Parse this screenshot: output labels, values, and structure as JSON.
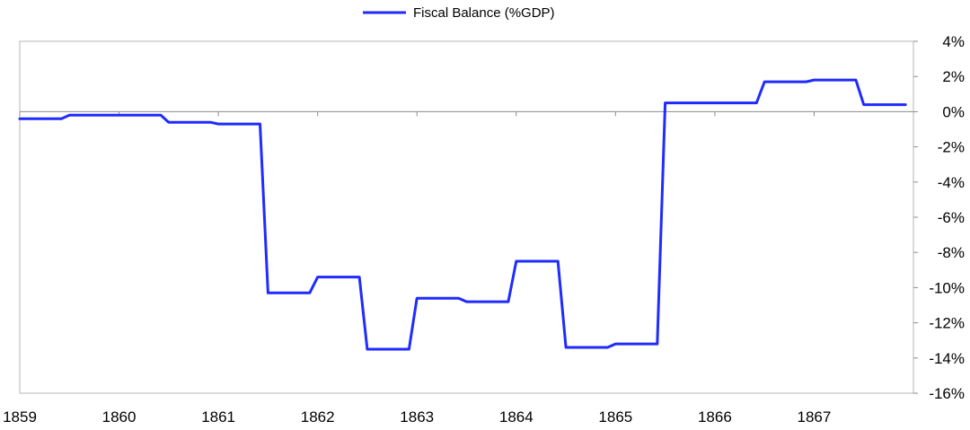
{
  "chart_data": {
    "type": "line",
    "title": "",
    "xlabel": "",
    "ylabel": "",
    "x_ticks": [
      "1859",
      "1860",
      "1861",
      "1862",
      "1863",
      "1864",
      "1865",
      "1866",
      "1867"
    ],
    "y_ticks": [
      {
        "value": 4,
        "label": "4%"
      },
      {
        "value": 2,
        "label": "2%"
      },
      {
        "value": 0,
        "label": "0%"
      },
      {
        "value": -2,
        "label": "-2%"
      },
      {
        "value": -4,
        "label": "-4%"
      },
      {
        "value": -6,
        "label": "-6%"
      },
      {
        "value": -8,
        "label": "-8%"
      },
      {
        "value": -10,
        "label": "-10%"
      },
      {
        "value": -12,
        "label": "-12%"
      },
      {
        "value": -14,
        "label": "-14%"
      },
      {
        "value": -16,
        "label": "-16%"
      }
    ],
    "xlim": [
      1859,
      1868
    ],
    "ylim": [
      -16,
      4
    ],
    "y_axis_position": "right",
    "legend_position": "top-center",
    "grid": false,
    "series": [
      {
        "name": "Fiscal Balance (%GDP)",
        "color": "#1f2bff",
        "points": [
          [
            1859.0,
            -0.4
          ],
          [
            1859.42,
            -0.4
          ],
          [
            1859.5,
            -0.2
          ],
          [
            1860.42,
            -0.2
          ],
          [
            1860.5,
            -0.6
          ],
          [
            1860.92,
            -0.6
          ],
          [
            1861.0,
            -0.7
          ],
          [
            1861.42,
            -0.7
          ],
          [
            1861.5,
            -10.3
          ],
          [
            1861.92,
            -10.3
          ],
          [
            1862.0,
            -9.4
          ],
          [
            1862.42,
            -9.4
          ],
          [
            1862.5,
            -13.5
          ],
          [
            1862.92,
            -13.5
          ],
          [
            1863.0,
            -10.6
          ],
          [
            1863.42,
            -10.6
          ],
          [
            1863.5,
            -10.8
          ],
          [
            1863.92,
            -10.8
          ],
          [
            1864.0,
            -8.5
          ],
          [
            1864.42,
            -8.5
          ],
          [
            1864.5,
            -13.4
          ],
          [
            1864.92,
            -13.4
          ],
          [
            1865.0,
            -13.2
          ],
          [
            1865.42,
            -13.2
          ],
          [
            1865.5,
            0.5
          ],
          [
            1866.42,
            0.5
          ],
          [
            1866.5,
            1.7
          ],
          [
            1866.92,
            1.7
          ],
          [
            1867.0,
            1.8
          ],
          [
            1867.42,
            1.8
          ],
          [
            1867.5,
            0.4
          ],
          [
            1867.92,
            0.4
          ]
        ]
      }
    ]
  }
}
